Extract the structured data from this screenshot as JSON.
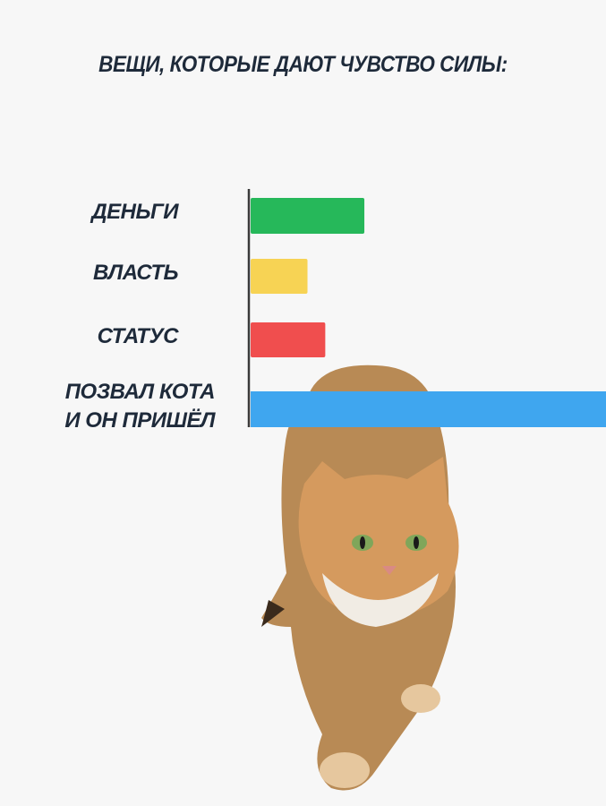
{
  "chart_data": {
    "type": "bar",
    "orientation": "horizontal",
    "title": "ВЕЩИ, КОТОРЫЕ ДАЮТ ЧУВСТВО СИЛЫ:",
    "categories": [
      "ДЕНЬГИ",
      "ВЛАСТЬ",
      "СТАТУС",
      "ПОЗВАЛ КОТА И ОН ПРИШЁЛ"
    ],
    "category_lines": [
      [
        "ДЕНЬГИ"
      ],
      [
        "ВЛАСТЬ"
      ],
      [
        "СТАТУС"
      ],
      [
        "ПОЗВАЛ КОТА",
        "И ОН ПРИШЁЛ"
      ]
    ],
    "values": [
      32,
      16,
      21,
      100
    ],
    "colors": [
      "#26b85a",
      "#f7d354",
      "#f04e4e",
      "#3fa6ef"
    ],
    "xlim": [
      0,
      100
    ],
    "grid": false,
    "legend": "none",
    "xlabel": "",
    "ylabel": ""
  },
  "image": {
    "subject": "cat-icon"
  }
}
